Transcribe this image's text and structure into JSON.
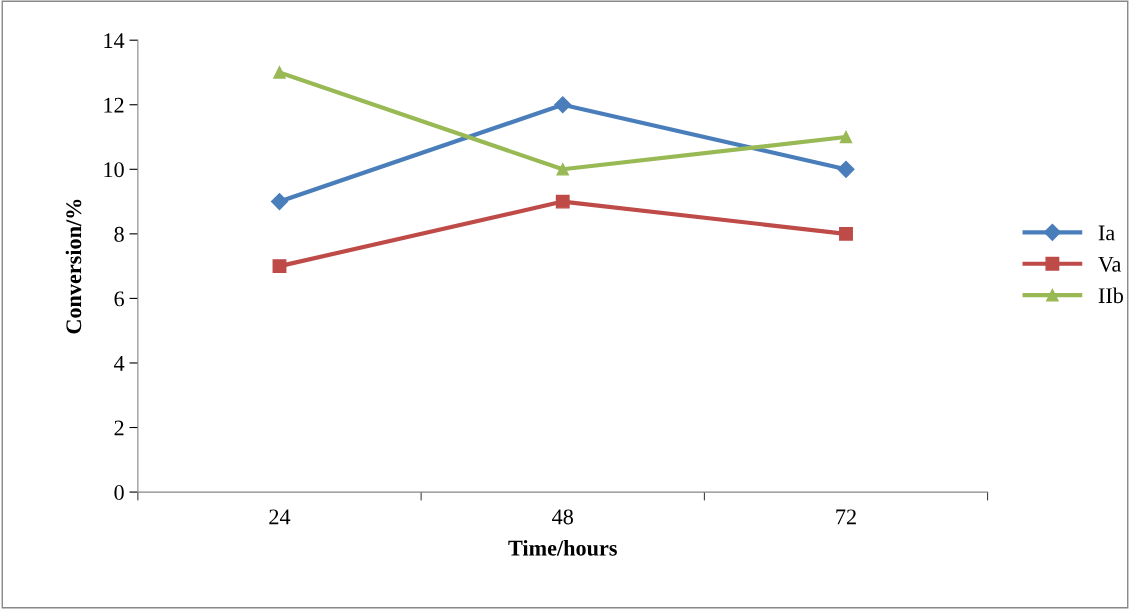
{
  "chart_data": {
    "type": "line",
    "xlabel": "Time/hours",
    "ylabel": "Conversion/%",
    "categories": [
      "24",
      "48",
      "72"
    ],
    "series": [
      {
        "name": "Ia",
        "color": "#4a7ebb",
        "marker": "diamond",
        "values": [
          9,
          12,
          10
        ]
      },
      {
        "name": "Va",
        "color": "#be4b48",
        "marker": "square",
        "values": [
          7,
          9,
          8
        ]
      },
      {
        "name": "IIb",
        "color": "#98b954",
        "marker": "triangle",
        "values": [
          13,
          10,
          11
        ]
      }
    ],
    "ylim": [
      0,
      14
    ],
    "yticks": [
      0,
      2,
      4,
      6,
      8,
      10,
      12,
      14
    ],
    "grid": false,
    "legend": "right",
    "line_style": "solid"
  }
}
